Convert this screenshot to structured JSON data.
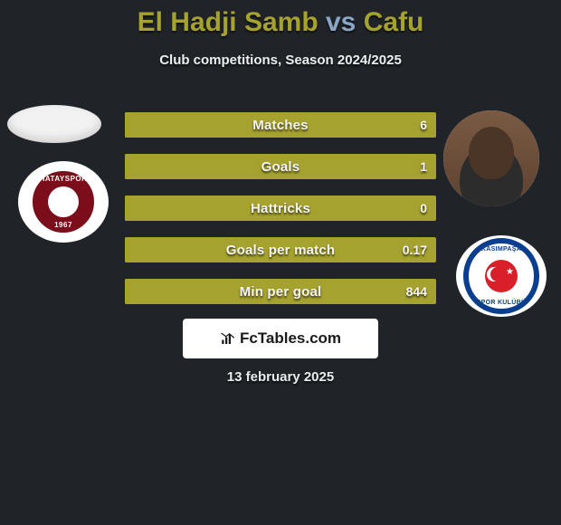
{
  "title": {
    "player1": "El Hadji Samb",
    "vs": "vs",
    "player2": "Cafu",
    "player1_color": "#a6a22f",
    "vs_color": "#8aa7c6",
    "player2_color": "#a6a22f"
  },
  "subtitle": "Club competitions, Season 2024/2025",
  "bars": {
    "bar_color": "#a6a22f",
    "text_color": "#f5f5f5",
    "items": [
      {
        "label": "Matches",
        "value": "6",
        "left_pct": 0,
        "right_pct": 100
      },
      {
        "label": "Goals",
        "value": "1",
        "left_pct": 0,
        "right_pct": 100
      },
      {
        "label": "Hattricks",
        "value": "0",
        "left_pct": 0,
        "right_pct": 100
      },
      {
        "label": "Goals per match",
        "value": "0.17",
        "left_pct": 0,
        "right_pct": 100
      },
      {
        "label": "Min per goal",
        "value": "844",
        "left_pct": 0,
        "right_pct": 100
      }
    ]
  },
  "left_club": {
    "name": "HATAYSPOR",
    "year": "1967",
    "ring_color": "#7b0e1a"
  },
  "right_club": {
    "top": "KASIMPAŞA",
    "bottom": "SPOR KULÜBÜ",
    "ring_color": "#0b3e8f",
    "flag_color": "#d91f2a"
  },
  "watermark": "FcTables.com",
  "footer_date": "13 february 2025",
  "colors": {
    "background": "#202428"
  }
}
